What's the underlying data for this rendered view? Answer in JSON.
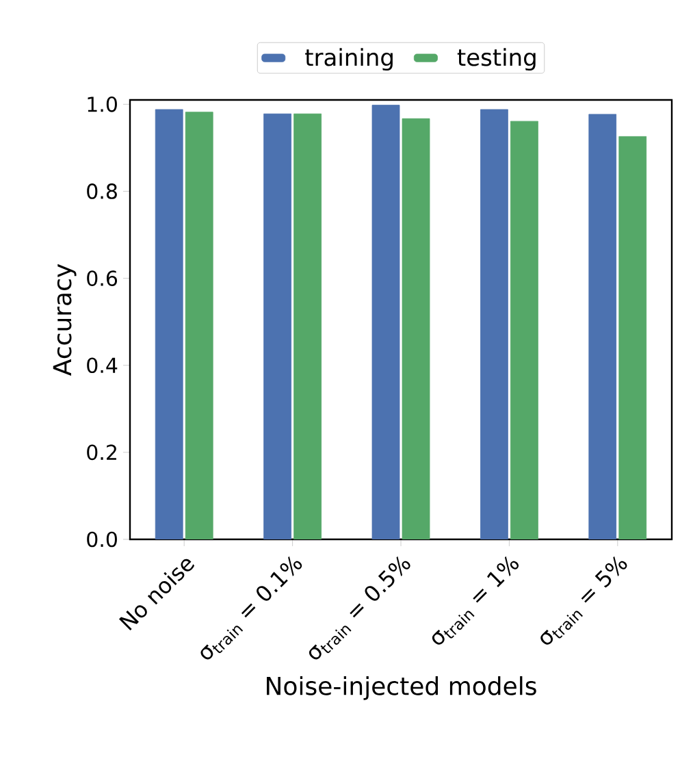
{
  "chart_data": {
    "type": "bar",
    "xlabel": "Noise-injected models",
    "ylabel": "Accuracy",
    "categories": [
      "No noise",
      "σ$_{train}$ = 0.1%",
      "σ$_{train}$ = 0.5%",
      "σ$_{train}$ = 1%",
      "σ$_{train}$ = 5%"
    ],
    "series": [
      {
        "name": "training",
        "color": "#4c72b0",
        "values": [
          0.988,
          0.978,
          0.998,
          0.988,
          0.977
        ]
      },
      {
        "name": "testing",
        "color": "#55a868",
        "values": [
          0.982,
          0.978,
          0.967,
          0.961,
          0.926
        ]
      }
    ],
    "ylim": [
      0,
      1.01
    ],
    "yticks": [
      {
        "value": 0,
        "label": "0.0"
      },
      0.2,
      0.4,
      0.6,
      0.8,
      {
        "value": 1,
        "label": "1.0"
      }
    ],
    "legend": "top",
    "grid": false
  }
}
